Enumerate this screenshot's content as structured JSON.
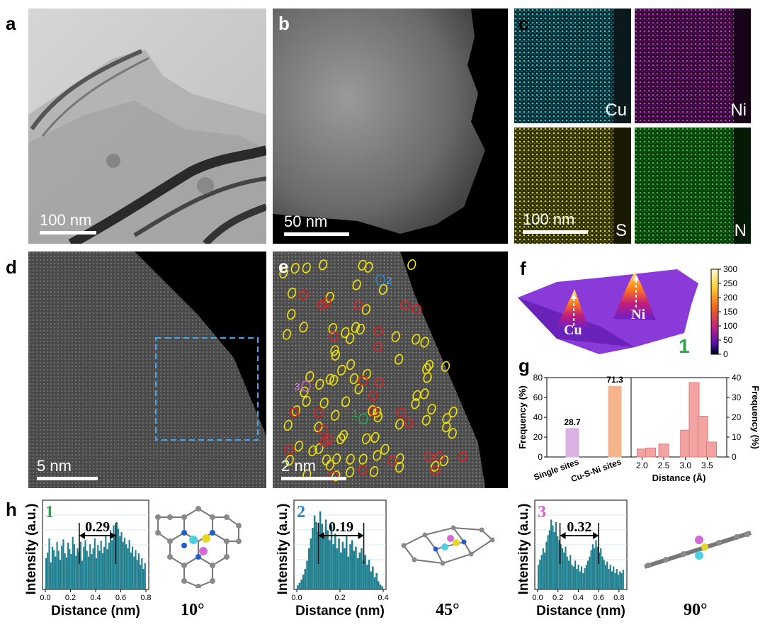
{
  "panels": {
    "a": {
      "label": "a",
      "scale": "100 nm"
    },
    "b": {
      "label": "b",
      "scale": "50 nm"
    },
    "c": {
      "label": "c",
      "scale": "100 nm",
      "elements": [
        "Cu",
        "Ni",
        "S",
        "N"
      ],
      "colors": [
        "#33c6d6",
        "#cf2fd4",
        "#d8d81e",
        "#27c92a"
      ]
    },
    "d": {
      "label": "d",
      "scale": "5 nm"
    },
    "e": {
      "label": "e",
      "scale": "2 nm",
      "markers": [
        "1",
        "2",
        "3"
      ]
    },
    "f": {
      "label": "f",
      "peaks": [
        "Cu",
        "Ni"
      ],
      "marker": "1",
      "colorbar_ticks": [
        "300",
        "250",
        "200",
        "150",
        "100",
        "50",
        "0"
      ]
    },
    "g": {
      "label": "g"
    },
    "h": {
      "label": "h"
    }
  },
  "chart_data": [
    {
      "id": "g-left",
      "type": "bar",
      "categories": [
        "Single sites",
        "Cu-S-Ni sites"
      ],
      "values": [
        28.7,
        71.3
      ],
      "value_labels": [
        "28.7",
        "71.3"
      ],
      "ylabel": "Frequency (%)",
      "ylim": [
        0,
        80
      ],
      "yticks": [
        "0",
        "20",
        "40",
        "60",
        "80"
      ],
      "colors": [
        "#d9b2e3",
        "#f6b48c"
      ]
    },
    {
      "id": "g-right",
      "type": "bar",
      "x": [
        2.0,
        2.2,
        2.5,
        3.0,
        3.2,
        3.4,
        3.6
      ],
      "values": [
        4,
        4.5,
        6.5,
        13.5,
        37.5,
        20.5,
        7.5
      ],
      "xlabel": "Distance (Å)",
      "ylabel": "Frequency (%)",
      "xticks": [
        "2.0",
        "2.5",
        "3.0",
        "3.5"
      ],
      "ylim": [
        0,
        40
      ],
      "yticks": [
        "0",
        "10",
        "20",
        "30",
        "40"
      ],
      "color": "#f4a3a3"
    },
    {
      "id": "h1",
      "type": "bar",
      "marker": "1",
      "marker_color": "#2aa84a",
      "annotation": "0.29",
      "xlabel": "Distance (nm)",
      "ylabel": "Intensity (a.u.)",
      "xticks": [
        "0.0",
        "0.2",
        "0.4",
        "0.6",
        "0.8"
      ],
      "xlim": [
        0,
        0.8
      ],
      "arrow": [
        0.27,
        0.56
      ],
      "color": "#1f7f8f",
      "values": [
        0.38,
        0.45,
        0.62,
        0.33,
        0.52,
        0.48,
        0.4,
        0.58,
        0.47,
        0.36,
        0.53,
        0.61,
        0.44,
        0.39,
        0.57,
        0.49,
        0.43,
        0.64,
        0.55,
        0.41,
        0.5,
        0.46,
        0.58,
        0.35,
        0.52,
        0.6,
        0.47,
        0.4,
        0.55,
        0.43,
        0.5,
        0.62,
        0.38,
        0.54,
        0.47,
        0.59,
        0.44,
        0.52,
        0.66,
        0.49,
        0.57,
        0.72,
        0.6,
        0.78,
        0.68,
        0.82,
        0.74,
        0.65,
        0.7,
        0.58,
        0.63,
        0.55,
        0.5,
        0.6,
        0.45,
        0.52,
        0.4,
        0.48,
        0.36,
        0.44,
        0.3,
        0.38,
        0.25,
        0.32
      ]
    },
    {
      "id": "h2",
      "type": "bar",
      "marker": "2",
      "marker_color": "#2a86c8",
      "annotation": "0.19",
      "xlabel": "Distance (nm)",
      "ylabel": "Intensity (a.u.)",
      "xticks": [
        "0.0",
        "0.2",
        "0.4"
      ],
      "xlim": [
        0,
        0.4
      ],
      "arrow": [
        0.1,
        0.31
      ],
      "color": "#1f7f8f",
      "values": [
        0.05,
        0.08,
        0.12,
        0.18,
        0.25,
        0.35,
        0.5,
        0.62,
        0.75,
        0.9,
        0.82,
        0.7,
        0.95,
        0.8,
        0.66,
        0.85,
        0.72,
        0.6,
        0.78,
        0.55,
        0.68,
        0.5,
        0.62,
        0.45,
        0.58,
        0.5,
        0.66,
        0.4,
        0.55,
        0.6,
        0.47,
        0.52,
        0.38,
        0.45,
        0.5,
        0.35,
        0.42,
        0.3,
        0.36,
        0.22,
        0.28,
        0.15,
        0.2,
        0.1,
        0.06,
        0.04
      ]
    },
    {
      "id": "h3",
      "type": "bar",
      "marker": "3",
      "marker_color": "#d45fd4",
      "annotation": "0.32",
      "xlabel": "Distance (nm)",
      "ylabel": "Intensity (a.u.)",
      "xticks": [
        "0.0",
        "0.2",
        "0.4",
        "0.6",
        "0.8"
      ],
      "xlim": [
        0,
        0.85
      ],
      "arrow": [
        0.22,
        0.6
      ],
      "color": "#1f7f8f",
      "values": [
        0.3,
        0.36,
        0.42,
        0.5,
        0.45,
        0.58,
        0.66,
        0.72,
        0.85,
        0.78,
        0.7,
        0.82,
        0.65,
        0.6,
        0.55,
        0.5,
        0.45,
        0.52,
        0.4,
        0.35,
        0.42,
        0.3,
        0.28,
        0.35,
        0.25,
        0.3,
        0.22,
        0.28,
        0.2,
        0.26,
        0.3,
        0.35,
        0.4,
        0.48,
        0.55,
        0.5,
        0.6,
        0.52,
        0.45,
        0.5,
        0.4,
        0.36,
        0.3,
        0.34,
        0.25,
        0.3,
        0.22,
        0.28,
        0.2,
        0.25,
        0.18,
        0.22,
        0.2,
        0.24
      ]
    }
  ],
  "angles": [
    "10°",
    "45°",
    "90°"
  ]
}
